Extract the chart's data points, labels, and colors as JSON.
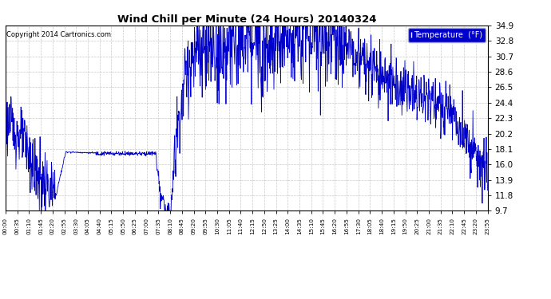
{
  "title": "Wind Chill per Minute (24 Hours) 20140324",
  "copyright": "Copyright 2014 Cartronics.com",
  "legend_label": "Temperature  (°F)",
  "line_color": "#0000cc",
  "background_color": "#ffffff",
  "grid_color": "#bbbbbb",
  "yticks": [
    9.7,
    11.8,
    13.9,
    16.0,
    18.1,
    20.2,
    22.3,
    24.4,
    26.5,
    28.6,
    30.7,
    32.8,
    34.9
  ],
  "ymin": 9.7,
  "ymax": 34.9,
  "xtick_labels": [
    "00:00",
    "00:35",
    "01:10",
    "01:45",
    "02:20",
    "02:55",
    "03:30",
    "04:05",
    "04:40",
    "05:15",
    "05:50",
    "06:25",
    "07:00",
    "07:35",
    "08:10",
    "08:45",
    "09:20",
    "09:55",
    "10:30",
    "11:05",
    "11:40",
    "12:15",
    "12:50",
    "13:25",
    "14:00",
    "14:35",
    "15:10",
    "15:45",
    "16:20",
    "16:55",
    "17:30",
    "18:05",
    "18:40",
    "19:15",
    "19:50",
    "20:25",
    "21:00",
    "21:35",
    "22:10",
    "22:45",
    "23:20",
    "23:55"
  ]
}
